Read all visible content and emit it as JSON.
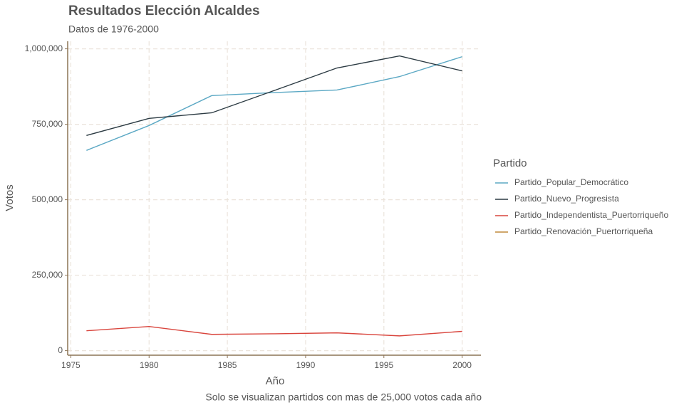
{
  "chart_data": {
    "type": "line",
    "title": "Resultados Elección Alcaldes",
    "subtitle": "Datos de 1976-2000",
    "x_label": "Año",
    "y_label": "Votos",
    "caption": "Solo se visualizan partidos con mas de 25,000 votos cada año",
    "legend_title": "Partido",
    "legend_position": "right",
    "grid": true,
    "x": [
      1976,
      1980,
      1984,
      1988,
      1992,
      1996,
      2000
    ],
    "series": [
      {
        "name": "Partido_Popular_Democrático",
        "color": "#5ba8c4",
        "values": [
          663500,
          746000,
          845000,
          855000,
          863500,
          908000,
          974000
        ]
      },
      {
        "name": "Partido_Nuevo_Progresista",
        "color": "#2b3a42",
        "values": [
          713000,
          769500,
          788000,
          862000,
          936500,
          976500,
          927000
        ]
      },
      {
        "name": "Partido_Independentista_Puertorriqueño",
        "color": "#d9453d",
        "values": [
          66000,
          80000,
          54000,
          56000,
          59000,
          49000,
          64000
        ]
      },
      {
        "name": "Partido_Renovación_Puertorriqueña",
        "color": "#c08a3b",
        "values": [
          null,
          null,
          null,
          null,
          null,
          null,
          null
        ]
      }
    ],
    "xlim": [
      1974.8,
      2001.2
    ],
    "xticks": [
      1975,
      1980,
      1985,
      1990,
      1995,
      2000
    ],
    "ylim": [
      -15000,
      1025000
    ],
    "yticks": [
      0,
      {
        "value": 250000,
        "label": "250,000"
      },
      {
        "value": 500000,
        "label": "500,000"
      },
      {
        "value": 750000,
        "label": "750,000"
      },
      {
        "value": 1000000,
        "label": "1,000,000"
      }
    ]
  }
}
